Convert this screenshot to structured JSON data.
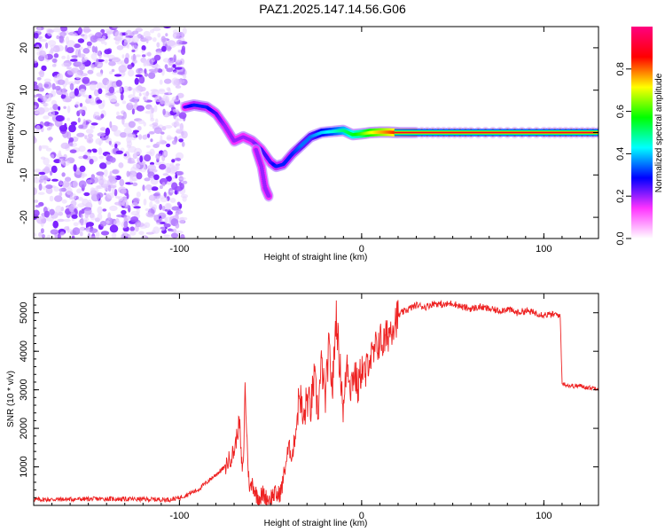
{
  "title": "PAZ1.2025.147.14.56.G06",
  "chart_data": [
    {
      "type": "heatmap",
      "xlabel": "Height of straight line (km)",
      "ylabel": "Frequency (Hz)",
      "xlim": [
        -180,
        130
      ],
      "ylim": [
        -25,
        25
      ],
      "xticks": [
        -100,
        0,
        100
      ],
      "xtick_labels": [
        "-100",
        "0",
        "100"
      ],
      "yticks": [
        -20,
        -10,
        0,
        10,
        20
      ],
      "ytick_labels": [
        "-20",
        "-10",
        "0",
        "10",
        "20"
      ],
      "colorbar": {
        "label": "Normalized spectral amplitude",
        "range": [
          0.0,
          1.0
        ],
        "ticks": [
          0.0,
          0.2,
          0.4,
          0.6,
          0.8
        ],
        "tick_labels": [
          "0.0",
          "0.2",
          "0.4",
          "0.6",
          "0.8"
        ],
        "colormap": [
          "#ffffff",
          "#ff33ff",
          "#0000ff",
          "#00ffff",
          "#00ff00",
          "#ffff00",
          "#ff0000",
          "#ff0080"
        ]
      },
      "noise_region_x": [
        -180,
        -97
      ],
      "ridge": {
        "x": [
          -97,
          -92,
          -85,
          -80,
          -75,
          -70,
          -65,
          -60,
          -55,
          -50,
          -47,
          -43,
          -38,
          -33,
          -28,
          -22,
          -15,
          -10,
          -5,
          0,
          5,
          10,
          15,
          20,
          30,
          60,
          100,
          130
        ],
        "y": [
          6,
          6.5,
          6,
          4.5,
          1.5,
          -2,
          -1,
          -2,
          -4,
          -7,
          -8,
          -7.5,
          -5,
          -3,
          -1,
          0,
          0.3,
          0.5,
          -0.5,
          -0.3,
          0,
          0.1,
          0.1,
          0,
          0,
          0,
          0,
          0
        ],
        "amplitude": [
          0.25,
          0.3,
          0.3,
          0.25,
          0.2,
          0.2,
          0.2,
          0.2,
          0.25,
          0.25,
          0.3,
          0.3,
          0.3,
          0.35,
          0.35,
          0.4,
          0.45,
          0.5,
          0.55,
          0.6,
          0.7,
          0.75,
          0.8,
          0.85,
          0.9,
          0.92,
          0.92,
          0.92
        ]
      },
      "branch": {
        "x": [
          -58,
          -55,
          -53,
          -51
        ],
        "y": [
          -4,
          -8,
          -13,
          -15
        ],
        "amplitude": [
          0.2,
          0.2,
          0.2,
          0.2
        ]
      }
    },
    {
      "type": "line",
      "xlabel": "Height of straight line (km)",
      "ylabel": "SNR (10 * v/v)",
      "xlim": [
        -180,
        130
      ],
      "ylim": [
        0,
        5500
      ],
      "xticks": [
        -100,
        0,
        100
      ],
      "xtick_labels": [
        "-100",
        "0",
        "100"
      ],
      "yticks": [
        1000,
        2000,
        3000,
        4000,
        5000
      ],
      "ytick_labels": [
        "1000",
        "2000",
        "3000",
        "4000",
        "5000"
      ],
      "color": "#ee2222",
      "series": [
        {
          "x": [
            -180,
            -160,
            -140,
            -120,
            -105,
            -100,
            -95,
            -90,
            -85,
            -80,
            -75,
            -70,
            -67,
            -66,
            -65,
            -64,
            -63,
            -62,
            -61,
            -60,
            -58,
            -56,
            -54,
            -52,
            -50,
            -48,
            -46,
            -44,
            -42,
            -40,
            -38,
            -36,
            -34,
            -32,
            -30,
            -28,
            -26,
            -24,
            -22,
            -20,
            -18,
            -16,
            -14,
            -13,
            -12,
            -11,
            -10,
            -8,
            -6,
            -4,
            -2,
            0,
            2,
            4,
            6,
            8,
            10,
            12,
            14,
            16,
            18,
            20,
            22,
            24,
            26,
            28,
            30,
            35,
            40,
            45,
            50,
            55,
            60,
            65,
            70,
            75,
            80,
            85,
            90,
            95,
            100,
            105,
            108,
            109,
            110,
            111,
            115,
            120,
            125,
            130
          ],
          "y": [
            150,
            160,
            170,
            160,
            150,
            200,
            300,
            400,
            600,
            800,
            1000,
            1400,
            2200,
            1100,
            900,
            3100,
            1800,
            700,
            400,
            600,
            300,
            200,
            300,
            150,
            200,
            300,
            250,
            400,
            1000,
            1500,
            1300,
            2000,
            3000,
            2100,
            2800,
            2500,
            3300,
            2400,
            3700,
            2700,
            4100,
            3000,
            5000,
            4300,
            3600,
            3200,
            2400,
            3800,
            3100,
            3500,
            3000,
            3600,
            3300,
            3900,
            3800,
            4100,
            4300,
            4200,
            4400,
            4600,
            4800,
            4900,
            5000,
            5050,
            5100,
            5150,
            5200,
            5150,
            5250,
            5200,
            5250,
            5150,
            5100,
            5150,
            5100,
            5050,
            5100,
            5000,
            5050,
            5000,
            4950,
            4950,
            4950,
            4900,
            3200,
            3150,
            3100,
            3100,
            3050,
            3050
          ]
        }
      ]
    }
  ]
}
